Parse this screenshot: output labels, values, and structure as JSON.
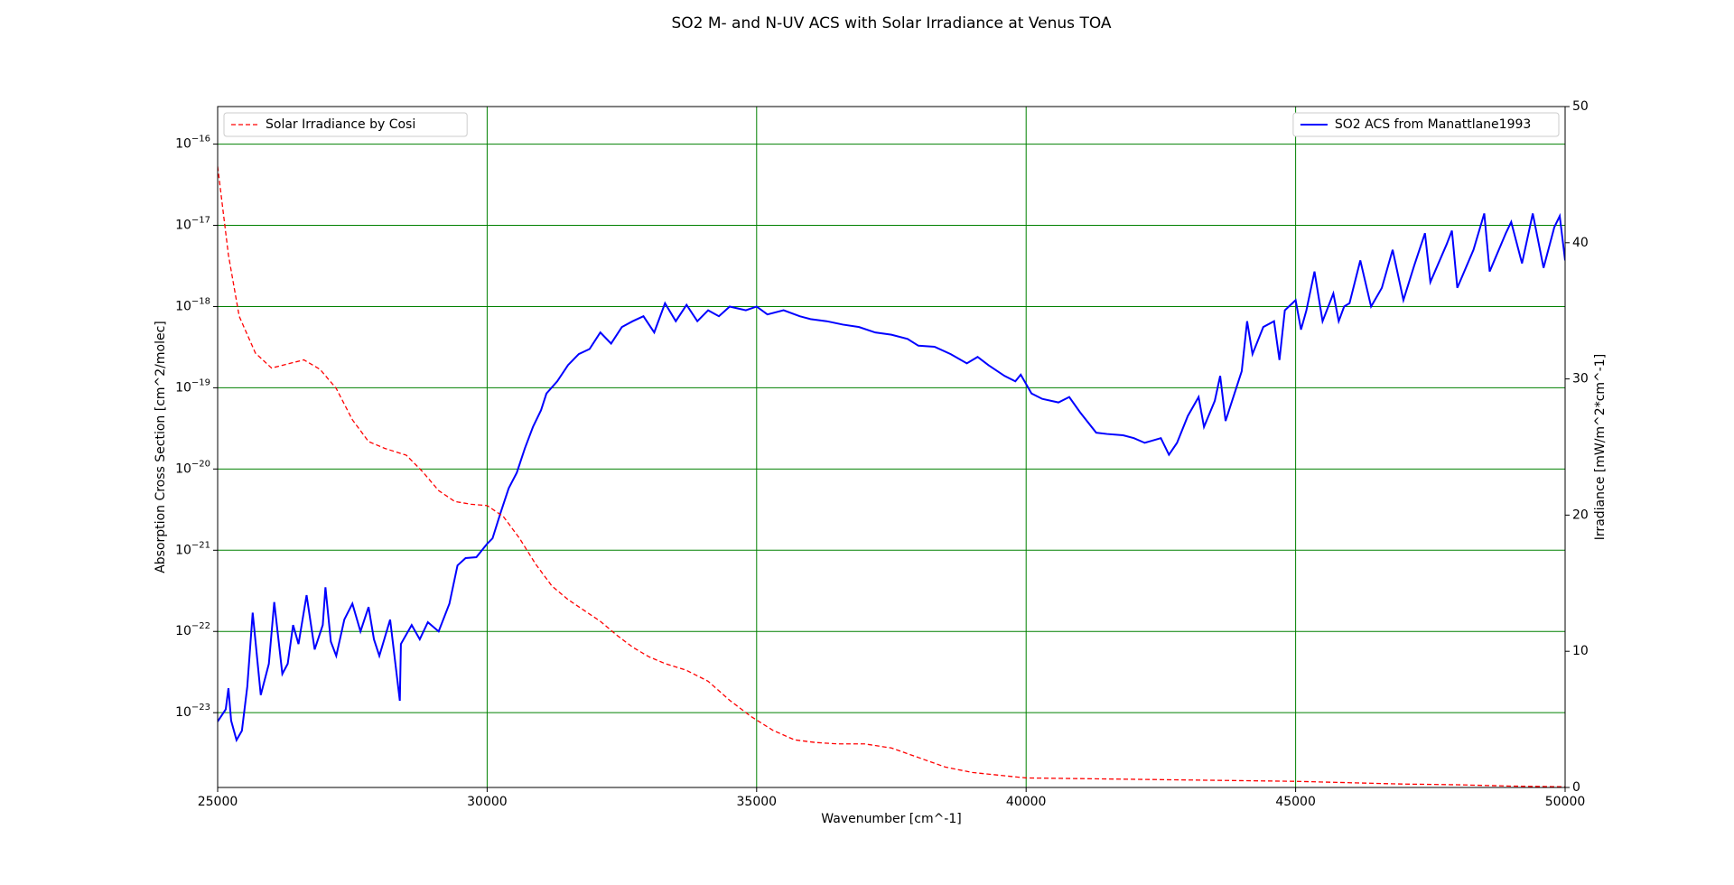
{
  "chart_data": {
    "type": "line",
    "title": "SO2 M- and N-UV ACS with Solar Irradiance at Venus TOA",
    "xlabel": "Wavenumber [cm^-1]",
    "ylabel": "Absorption Cross Section [cm^2/molec]",
    "y2label": "Irradiance [mW/m^2*cm^-1]",
    "xlim": [
      25000,
      50000
    ],
    "xticks": [
      25000,
      30000,
      35000,
      40000,
      45000,
      50000
    ],
    "ylim": [
      1.2e-24,
      2.9e-16
    ],
    "log_y": true,
    "yticks": [
      {
        "value": 1e-16,
        "label": "10−16"
      },
      {
        "value": 1e-17,
        "label": "10−17"
      },
      {
        "value": 1e-18,
        "label": "10−18"
      },
      {
        "value": 1e-19,
        "label": "10−19"
      },
      {
        "value": 1e-20,
        "label": "10−20"
      },
      {
        "value": 1e-21,
        "label": "10−21"
      },
      {
        "value": 1e-22,
        "label": "10−22"
      },
      {
        "value": 1e-23,
        "label": "10−23"
      }
    ],
    "y2lim": [
      0,
      50
    ],
    "y2ticks": [
      0,
      10,
      20,
      30,
      40,
      50
    ],
    "grid": true,
    "grid_color": "green",
    "series": [
      {
        "name": "SO2 ACS from Manattlane1993",
        "color": "#0000ff",
        "linestyle": "solid",
        "legend": "upper right",
        "x": [
          25000,
          25150,
          25200,
          25250,
          25350,
          25450,
          25550,
          25650,
          25800,
          25950,
          26050,
          26200,
          26300,
          26400,
          26500,
          26650,
          26800,
          26950,
          27000,
          27100,
          27200,
          27350,
          27500,
          27650,
          27800,
          27900,
          28000,
          28200,
          28380,
          28400,
          28600,
          28750,
          28900,
          29100,
          29300,
          29450,
          29600,
          29800,
          30000,
          30100,
          30250,
          30400,
          30550,
          30700,
          30850,
          31000,
          31100,
          31300,
          31500,
          31700,
          31900,
          32100,
          32300,
          32500,
          32700,
          32900,
          33100,
          33300,
          33500,
          33700,
          33900,
          34100,
          34300,
          34500,
          34800,
          35000,
          35200,
          35500,
          35800,
          36000,
          36300,
          36600,
          36900,
          37200,
          37500,
          37800,
          38000,
          38300,
          38600,
          38900,
          39100,
          39300,
          39600,
          39800,
          39900,
          40100,
          40300,
          40600,
          40800,
          41000,
          41300,
          41500,
          41800,
          42000,
          42200,
          42500,
          42650,
          42800,
          43000,
          43200,
          43300,
          43500,
          43600,
          43700,
          43900,
          44000,
          44100,
          44200,
          44400,
          44600,
          44700,
          44800,
          45000,
          45100,
          45200,
          45350,
          45500,
          45700,
          45800,
          45900,
          46000,
          46200,
          46400,
          46600,
          46800,
          47000,
          47200,
          47400,
          47500,
          47800,
          47900,
          48000,
          48300,
          48500,
          48600,
          48900,
          49000,
          49200,
          49400,
          49600,
          49800,
          49900,
          50000
        ],
        "values": [
          7.8e-24,
          1.1e-23,
          2e-23,
          8e-24,
          4.6e-24,
          6e-24,
          2.1e-23,
          1.7e-22,
          1.65e-23,
          4e-23,
          2.3e-22,
          3e-23,
          4e-23,
          1.2e-22,
          7e-23,
          2.8e-22,
          6e-23,
          1.2e-22,
          3.5e-22,
          7.5e-23,
          5e-23,
          1.4e-22,
          2.2e-22,
          1e-22,
          2e-22,
          8e-23,
          5e-23,
          1.4e-22,
          1.4e-23,
          7e-23,
          1.2e-22,
          8e-23,
          1.3e-22,
          1e-22,
          2.2e-22,
          6.5e-22,
          8e-22,
          8.2e-22,
          1.2e-21,
          1.4e-21,
          2.9e-21,
          5.8e-21,
          9e-21,
          1.8e-20,
          3.3e-20,
          5.3e-20,
          8.5e-20,
          1.2e-19,
          1.9e-19,
          2.6e-19,
          3e-19,
          4.8e-19,
          3.5e-19,
          5.6e-19,
          6.6e-19,
          7.6e-19,
          4.8e-19,
          1.1e-18,
          6.6e-19,
          1.05e-18,
          6.6e-19,
          9e-19,
          7.6e-19,
          1e-18,
          9e-19,
          1e-18,
          8e-19,
          9e-19,
          7.6e-19,
          7e-19,
          6.6e-19,
          6e-19,
          5.6e-19,
          4.8e-19,
          4.5e-19,
          4e-19,
          3.3e-19,
          3.2e-19,
          2.6e-19,
          2e-19,
          2.4e-19,
          1.9e-19,
          1.4e-19,
          1.2e-19,
          1.45e-19,
          8.5e-20,
          7.3e-20,
          6.6e-20,
          7.7e-20,
          5e-20,
          2.8e-20,
          2.7e-20,
          2.6e-20,
          2.4e-20,
          2.1e-20,
          2.4e-20,
          1.5e-20,
          2.1e-20,
          4.5e-20,
          7.7e-20,
          3.3e-20,
          6.9e-20,
          1.4e-19,
          3.9e-20,
          1e-19,
          1.6e-19,
          6.6e-19,
          2.6e-19,
          5.6e-19,
          6.6e-19,
          2.2e-19,
          9e-19,
          1.2e-18,
          5.2e-19,
          9e-19,
          2.7e-18,
          6.6e-19,
          1.45e-18,
          6.6e-19,
          1e-18,
          1.1e-18,
          3.7e-18,
          1e-18,
          1.7e-18,
          5e-18,
          1.2e-18,
          3.2e-18,
          8e-18,
          2e-18,
          5.8e-18,
          8.6e-18,
          1.7e-18,
          5e-18,
          1.4e-17,
          2.7e-18,
          8e-18,
          1.1e-17,
          3.4e-18,
          1.4e-17,
          3e-18,
          9.5e-18,
          1.3e-17,
          3.7e-18
        ]
      },
      {
        "name": "Solar Irradiance by Cosi",
        "color": "#ff0000",
        "linestyle": "dashed",
        "axis": "y2",
        "legend": "upper left",
        "x": [
          25000,
          25200,
          25400,
          25700,
          26000,
          26300,
          26600,
          26900,
          27200,
          27500,
          27800,
          28100,
          28500,
          28800,
          29100,
          29400,
          29700,
          30000,
          30300,
          30600,
          30900,
          31200,
          31500,
          31800,
          32100,
          32400,
          32700,
          33000,
          33300,
          33700,
          34100,
          34500,
          34900,
          35300,
          35700,
          36100,
          36500,
          37000,
          37500,
          38000,
          38500,
          39000,
          39500,
          40000,
          41000,
          42000,
          43000,
          44000,
          45000,
          46000,
          47000,
          48000,
          49000,
          50000
        ],
        "values": [
          45.6,
          39.1,
          34.6,
          31.9,
          30.8,
          31.1,
          31.4,
          30.7,
          29.3,
          27.0,
          25.4,
          24.9,
          24.4,
          23.2,
          21.8,
          21.0,
          20.8,
          20.7,
          19.9,
          18.3,
          16.4,
          14.8,
          13.8,
          13.0,
          12.2,
          11.2,
          10.3,
          9.6,
          9.1,
          8.6,
          7.8,
          6.4,
          5.2,
          4.2,
          3.5,
          3.3,
          3.2,
          3.2,
          2.9,
          2.2,
          1.5,
          1.1,
          0.9,
          0.7,
          0.65,
          0.6,
          0.55,
          0.5,
          0.45,
          0.35,
          0.25,
          0.2,
          0.1,
          0.05
        ]
      }
    ]
  }
}
